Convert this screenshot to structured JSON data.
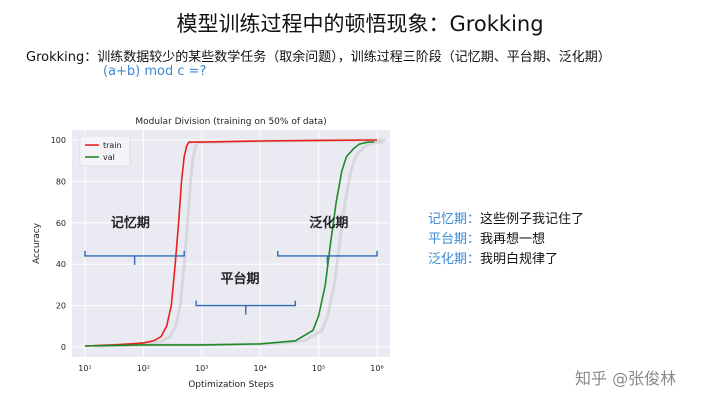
{
  "slide": {
    "title": "模型训练过程中的顿悟现象：Grokking",
    "subtitle": "Grokking：训练数据较少的某些数学任务（取余问题），训练过程三阶段（记忆期、平台期、泛化期）",
    "formula": "(a+b) mod c =?",
    "phases": [
      {
        "key": "记忆期：",
        "desc": "这些例子我记住了"
      },
      {
        "key": "平台期：",
        "desc": "我再想一想"
      },
      {
        "key": "泛化期：",
        "desc": "我明白规律了"
      }
    ],
    "watermark": "知乎 @张俊林"
  },
  "chart_data": {
    "type": "line",
    "title": "Modular Division (training on 50% of data)",
    "xlabel": "Optimization Steps",
    "ylabel": "Accuracy",
    "xscale": "log",
    "xlim": [
      10,
      1000000
    ],
    "ylim": [
      0,
      100
    ],
    "xticks": [
      "10¹",
      "10²",
      "10³",
      "10⁴",
      "10⁵",
      "10⁶"
    ],
    "yticks": [
      "0",
      "20",
      "40",
      "60",
      "80",
      "100"
    ],
    "grid": true,
    "legend": "top-left",
    "series": [
      {
        "name": "train",
        "color": "#e8211b",
        "x": [
          10,
          30,
          60,
          100,
          150,
          200,
          250,
          300,
          350,
          400,
          450,
          500,
          550,
          600,
          1000,
          10000,
          100000,
          1000000
        ],
        "y": [
          0.5,
          1,
          1.5,
          2,
          3,
          5,
          10,
          20,
          40,
          60,
          80,
          92,
          97,
          99,
          99,
          99.5,
          99.8,
          100
        ]
      },
      {
        "name": "val",
        "color": "#1f8a2a",
        "x": [
          10,
          100,
          500,
          1000,
          10000,
          40000,
          80000,
          100000,
          130000,
          160000,
          200000,
          250000,
          300000,
          400000,
          500000,
          700000,
          900000
        ],
        "y": [
          0.5,
          1,
          1,
          1,
          1.5,
          3,
          8,
          15,
          30,
          50,
          70,
          85,
          92,
          96,
          98,
          99,
          99
        ]
      }
    ],
    "annotations": [
      {
        "text": "记忆期",
        "x": 60,
        "y": 58
      },
      {
        "text": "平台期",
        "x": 4500,
        "y": 31
      },
      {
        "text": "泛化期",
        "x": 150000,
        "y": 58
      }
    ]
  }
}
